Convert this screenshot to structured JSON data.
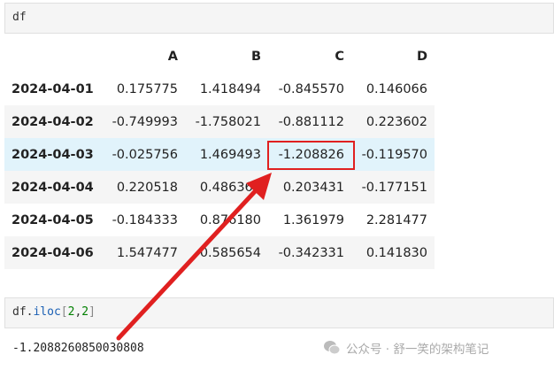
{
  "cells": [
    {
      "code": "df"
    },
    {
      "code_parts": {
        "obj": "df",
        "dot": ".",
        "method": "iloc",
        "open": "[",
        "a": "2",
        "comma": ",",
        "b": "2",
        "close": "]"
      }
    }
  ],
  "table": {
    "columns": [
      "A",
      "B",
      "C",
      "D"
    ],
    "rows": [
      {
        "index": "2024-04-01",
        "values": [
          "0.175775",
          "1.418494",
          "-0.845570",
          "0.146066"
        ]
      },
      {
        "index": "2024-04-02",
        "values": [
          "-0.749993",
          "-1.758021",
          "-0.881112",
          "0.223602"
        ]
      },
      {
        "index": "2024-04-03",
        "values": [
          "-0.025756",
          "1.469493",
          "-1.208826",
          "-0.119570"
        ]
      },
      {
        "index": "2024-04-04",
        "values": [
          "0.220518",
          "0.486363",
          "0.203431",
          "-0.177151"
        ]
      },
      {
        "index": "2024-04-05",
        "values": [
          "-0.184333",
          "0.876180",
          "1.361979",
          "2.281477"
        ]
      },
      {
        "index": "2024-04-06",
        "values": [
          "1.547477",
          "0.585654",
          "-0.342331",
          "0.141830"
        ]
      }
    ]
  },
  "output": "-1.2088260850030808",
  "watermark": "公众号 · 舒一笑的架构笔记",
  "colors": {
    "highlight_row": "#e1f3fb",
    "annotation": "#e02020"
  }
}
